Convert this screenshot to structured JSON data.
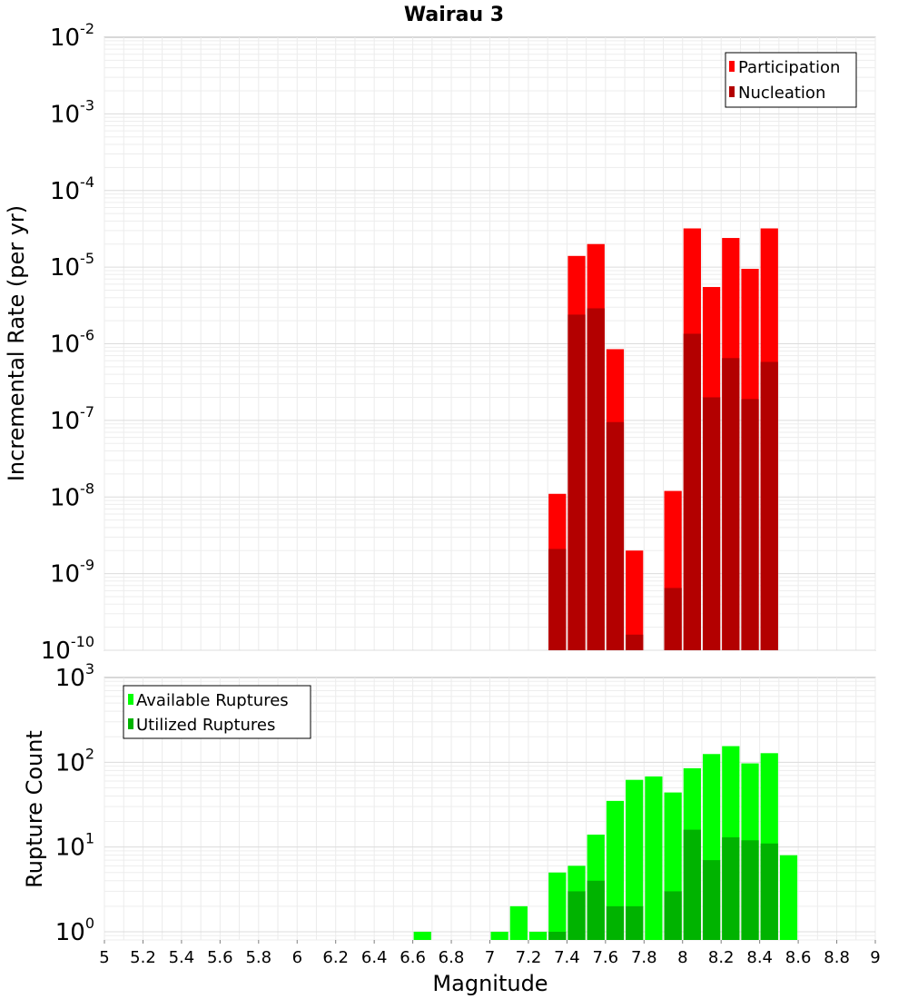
{
  "title": "Wairau 3",
  "chart_data": [
    {
      "type": "bar",
      "ylabel": "Incremental Rate (per yr)",
      "xlabel": "",
      "y_scale": "log",
      "xlim": [
        5,
        9
      ],
      "ylim": [
        1e-10,
        0.01
      ],
      "y_ticks": [
        {
          "mantissa": "10",
          "exp": "-10"
        },
        {
          "mantissa": "10",
          "exp": "-9"
        },
        {
          "mantissa": "10",
          "exp": "-8"
        },
        {
          "mantissa": "10",
          "exp": "-7"
        },
        {
          "mantissa": "10",
          "exp": "-6"
        },
        {
          "mantissa": "10",
          "exp": "-5"
        },
        {
          "mantissa": "10",
          "exp": "-4"
        },
        {
          "mantissa": "10",
          "exp": "-3"
        },
        {
          "mantissa": "10",
          "exp": "-2"
        }
      ],
      "grid": true,
      "legend_position": "top-right",
      "series": [
        {
          "name": "Participation",
          "color": "#ff0000",
          "x": [
            7.35,
            7.45,
            7.55,
            7.65,
            7.75,
            7.95,
            8.05,
            8.15,
            8.25,
            8.35,
            8.45
          ],
          "values": [
            1.1e-08,
            1.4e-05,
            2e-05,
            8.5e-07,
            2e-09,
            1.2e-08,
            3.2e-05,
            5.5e-06,
            2.4e-05,
            9.5e-06,
            3.2e-05
          ]
        },
        {
          "name": "Nucleation",
          "color": "#b30000",
          "x": [
            7.35,
            7.45,
            7.55,
            7.65,
            7.75,
            7.95,
            8.05,
            8.15,
            8.25,
            8.35,
            8.45
          ],
          "values": [
            2.1e-09,
            2.4e-06,
            2.9e-06,
            9.5e-08,
            1.6e-10,
            6.5e-10,
            1.35e-06,
            2e-07,
            6.5e-07,
            1.9e-07,
            5.8e-07
          ]
        }
      ]
    },
    {
      "type": "bar",
      "ylabel": "Rupture Count",
      "xlabel": "Magnitude",
      "y_scale": "log",
      "xlim": [
        5,
        9
      ],
      "ylim": [
        0.8,
        1000
      ],
      "y_ticks": [
        {
          "mantissa": "10",
          "exp": "0"
        },
        {
          "mantissa": "10",
          "exp": "1"
        },
        {
          "mantissa": "10",
          "exp": "2"
        },
        {
          "mantissa": "10",
          "exp": "3"
        }
      ],
      "x_ticks": [
        "5",
        "5.2",
        "5.4",
        "5.6",
        "5.8",
        "6",
        "6.2",
        "6.4",
        "6.6",
        "6.8",
        "7",
        "7.2",
        "7.4",
        "7.6",
        "7.8",
        "8",
        "8.2",
        "8.4",
        "8.6",
        "8.8",
        "9"
      ],
      "grid": true,
      "legend_position": "top-left",
      "series": [
        {
          "name": "Available Ruptures",
          "color": "#00ff00",
          "x": [
            6.65,
            7.05,
            7.15,
            7.25,
            7.35,
            7.45,
            7.55,
            7.65,
            7.75,
            7.85,
            7.95,
            8.05,
            8.15,
            8.25,
            8.35,
            8.45,
            8.55
          ],
          "values": [
            1,
            1,
            2,
            1,
            5,
            6,
            14,
            35,
            62,
            68,
            44,
            85,
            125,
            155,
            97,
            128,
            8
          ]
        },
        {
          "name": "Utilized Ruptures",
          "color": "#00b300",
          "x": [
            7.35,
            7.45,
            7.55,
            7.65,
            7.75,
            7.95,
            8.05,
            8.15,
            8.25,
            8.35,
            8.45
          ],
          "values": [
            1,
            3,
            4,
            2,
            2,
            3,
            16,
            7,
            13,
            12,
            11
          ]
        }
      ]
    }
  ]
}
